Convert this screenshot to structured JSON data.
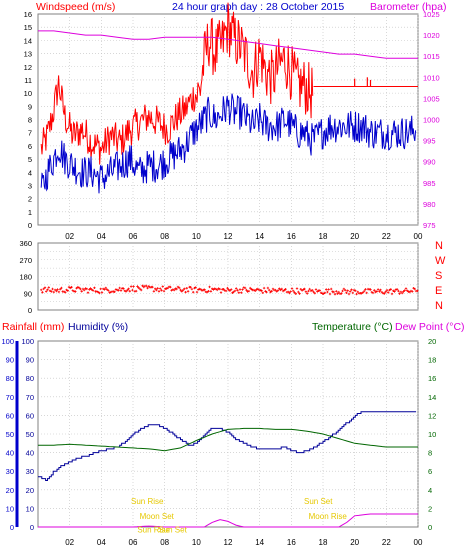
{
  "header": {
    "windspeed_label": "Windspeed (m/s)",
    "title": "24 hour graph day : 28 October 2015",
    "barometer_label": "Barometer (hpa)"
  },
  "mid": {
    "direction_labels": [
      "N",
      "W",
      "S",
      "E",
      "N"
    ]
  },
  "bottom": {
    "rainfall_label": "Rainfall (mm)",
    "humidity_label": "Humidity (%)",
    "temperature_label": "Temperature (°C)",
    "dewpoint_label": "Dew Point (°C)",
    "annotations": [
      {
        "text": "Sun Rise",
        "hour": 6.9,
        "y": 2.5
      },
      {
        "text": "Sun Set",
        "hour": 17.7,
        "y": 2.5
      },
      {
        "text": "Moon Set",
        "hour": 7.5,
        "y": 0.85
      },
      {
        "text": "Moon Rise",
        "hour": 18.3,
        "y": 0.85
      },
      {
        "text": "Sun Rise",
        "hour": 7.3,
        "y": -0.6
      },
      {
        "text": "Sun Set",
        "hour": 8.5,
        "y": -0.6
      }
    ]
  },
  "colors": {
    "wind": "#ff0000",
    "gust": "#ff0000",
    "avgwind": "#0000cc",
    "baro": "#dd00dd",
    "dir": "#ff0000",
    "humidity": "#000099",
    "temperature": "#006600",
    "dewpoint": "#dd00dd",
    "annotation": "#e6c800",
    "grid": "#c0c0c0"
  },
  "chart_data": [
    {
      "type": "line",
      "title": "24 hour graph day : 28 October 2015",
      "x_ticks": [
        "02",
        "04",
        "06",
        "08",
        "10",
        "12",
        "14",
        "16",
        "18",
        "20",
        "22",
        "00"
      ],
      "xlim_hours": [
        0,
        24
      ],
      "y_left": {
        "label": "Windspeed (m/s)",
        "ylim": [
          0,
          16
        ],
        "ticks": [
          0,
          1,
          2,
          3,
          4,
          5,
          6,
          7,
          8,
          9,
          10,
          11,
          12,
          13,
          14,
          15,
          16
        ]
      },
      "y_right": {
        "label": "Barometer (hpa)",
        "ylim": [
          975,
          1025
        ],
        "ticks": [
          975,
          980,
          985,
          990,
          995,
          1000,
          1005,
          1010,
          1015,
          1020,
          1025
        ]
      },
      "series": [
        {
          "name": "Windspeed (m/s)",
          "axis": "left",
          "style": "gust-max",
          "x": [
            0.2,
            0.6,
            1.0,
            1.3,
            1.7,
            2.2,
            2.8,
            3.4,
            4.0,
            4.6,
            5.2,
            5.8,
            6.4,
            7.0,
            7.6,
            8.2,
            8.8,
            9.3,
            9.8,
            10.2,
            10.5,
            10.8,
            11.2,
            11.6,
            12.0,
            12.4,
            12.8,
            13.2,
            13.6,
            14.0,
            14.4,
            14.8,
            15.2,
            15.6,
            16.0,
            16.4,
            16.8,
            17.2,
            17.5,
            17.9,
            18.5,
            19.2,
            20.0,
            20.5,
            21.0,
            21.5,
            22.0,
            22.5,
            23.0,
            23.5,
            24.0
          ],
          "y": [
            6,
            7,
            9,
            11,
            8.5,
            7,
            7.5,
            6.5,
            6,
            7,
            6.5,
            7.5,
            8,
            8.5,
            8,
            7.5,
            8.5,
            9,
            10,
            10.5,
            13,
            14.5,
            13.5,
            14,
            15.5,
            14.5,
            14,
            13,
            12,
            13.5,
            12,
            11.5,
            12.5,
            13,
            12,
            11,
            11,
            10.5,
            10.5,
            10.5,
            10.5,
            10.5,
            10.5,
            10.5,
            10.5,
            10.5,
            10.5,
            10.5,
            10.5,
            10.5,
            10.5
          ]
        },
        {
          "name": "Average wind",
          "axis": "left",
          "style": "avg",
          "x": [
            0.2,
            0.6,
            1.0,
            1.3,
            1.7,
            2.2,
            2.8,
            3.4,
            4.0,
            4.6,
            5.2,
            5.8,
            6.4,
            7.0,
            7.6,
            8.2,
            8.8,
            9.3,
            9.8,
            10.2,
            10.5,
            10.8,
            11.2,
            11.6,
            12.0,
            12.4,
            12.8,
            13.2,
            13.6,
            14.0,
            14.4,
            14.8,
            15.2,
            15.6,
            16.0,
            16.4,
            16.8,
            17.2,
            17.5,
            17.9,
            18.5,
            19.2,
            20.0,
            20.5,
            21.0,
            21.5,
            22.0,
            22.5,
            23.0,
            23.5,
            24.0
          ],
          "y": [
            2.5,
            4,
            5,
            6,
            5,
            4.5,
            4,
            4,
            3.5,
            4,
            4.5,
            5,
            4,
            4.5,
            4.5,
            5,
            5.5,
            6,
            7,
            7.5,
            8,
            8.5,
            8,
            8.5,
            9,
            8.5,
            8.5,
            8,
            7.5,
            8,
            7.5,
            7.5,
            7.5,
            8,
            7.5,
            7,
            7,
            6.5,
            6.5,
            7,
            7.5,
            7.5,
            7.5,
            7.5,
            7,
            7,
            7,
            7,
            7,
            7,
            7.5
          ]
        },
        {
          "name": "Barometer (hpa)",
          "axis": "right",
          "style": "baro",
          "x": [
            0,
            1,
            2,
            3,
            4,
            5,
            6,
            7,
            8,
            9,
            10,
            11,
            12,
            13,
            14,
            15,
            16,
            17,
            18,
            19,
            20,
            21,
            22,
            23,
            24
          ],
          "y": [
            1021,
            1021,
            1020.5,
            1020,
            1020,
            1019.5,
            1019,
            1019,
            1019.5,
            1019.5,
            1019.5,
            1019.5,
            1019,
            1018.5,
            1018,
            1017.5,
            1017,
            1016.5,
            1016,
            1015.5,
            1015.5,
            1015,
            1014.5,
            1014.5,
            1014.5
          ]
        }
      ]
    },
    {
      "type": "scatter",
      "title": "",
      "x_ticks": [
        "02",
        "04",
        "06",
        "08",
        "10",
        "12",
        "14",
        "16",
        "18",
        "20",
        "22",
        "00"
      ],
      "y_left": {
        "ylim": [
          0,
          360
        ],
        "ticks": [
          0,
          45,
          90,
          135,
          180,
          225,
          270,
          315,
          360
        ]
      },
      "y_right": {
        "labels": [
          "N",
          "W",
          "S",
          "E",
          "N"
        ]
      },
      "series": [
        {
          "name": "Wind direction",
          "x": [
            0,
            1,
            2,
            3,
            4,
            5,
            6,
            7,
            8,
            9,
            10,
            11,
            12,
            13,
            14,
            15,
            16,
            17,
            18,
            19,
            20,
            21,
            22,
            23,
            24
          ],
          "y": [
            110,
            105,
            110,
            108,
            105,
            110,
            115,
            115,
            112,
            110,
            108,
            110,
            105,
            108,
            105,
            105,
            103,
            100,
            100,
            100,
            98,
            98,
            100,
            100,
            105
          ]
        }
      ]
    },
    {
      "type": "line",
      "title": "",
      "x_ticks": [
        "02",
        "04",
        "06",
        "08",
        "10",
        "12",
        "14",
        "16",
        "18",
        "20",
        "22",
        "00"
      ],
      "y_left": {
        "label": "Rainfall (mm) / Humidity (%)",
        "ylim": [
          0,
          100
        ],
        "ticks": [
          0,
          10,
          20,
          30,
          40,
          50,
          60,
          70,
          80,
          90,
          100
        ]
      },
      "y_right": {
        "label": "Temperature (°C) / Dew Point (°C)",
        "ylim": [
          0,
          20
        ],
        "ticks": [
          0,
          2,
          4,
          6,
          8,
          10,
          12,
          14,
          16,
          18,
          20
        ]
      },
      "series": [
        {
          "name": "Humidity (%)",
          "axis": "left",
          "x": [
            0,
            0.5,
            1,
            1.5,
            2,
            2.5,
            3,
            3.5,
            4,
            4.5,
            5,
            5.5,
            6,
            6.5,
            7,
            7.5,
            8,
            8.5,
            9,
            9.5,
            10,
            10.5,
            11,
            11.5,
            12,
            12.5,
            13,
            13.5,
            14,
            14.5,
            15,
            15.5,
            16,
            16.5,
            17,
            17.5,
            18,
            18.5,
            19,
            19.5,
            20,
            20.5,
            21,
            21.5,
            22,
            22.5,
            23,
            23.5,
            24
          ],
          "y": [
            27,
            25,
            30,
            33,
            35,
            37,
            38,
            40,
            41,
            42,
            43,
            46,
            50,
            53,
            55,
            55,
            53,
            50,
            47,
            44,
            45,
            50,
            53,
            53,
            51,
            47,
            45,
            43,
            42,
            42,
            42,
            43,
            41,
            40,
            41,
            43,
            46,
            49,
            52,
            56,
            60,
            62,
            62,
            62,
            62,
            62,
            62,
            62,
            62
          ]
        },
        {
          "name": "Temperature (°C)",
          "axis": "right",
          "x": [
            0,
            1,
            2,
            3,
            4,
            5,
            6,
            7,
            8,
            9,
            10,
            11,
            12,
            13,
            14,
            15,
            16,
            17,
            18,
            19,
            20,
            21,
            22,
            23,
            24
          ],
          "y": [
            8.8,
            8.8,
            8.9,
            8.8,
            8.7,
            8.6,
            8.5,
            8.4,
            8.2,
            8.5,
            9.3,
            10.0,
            10.5,
            10.6,
            10.6,
            10.5,
            10.5,
            10.3,
            10.0,
            9.5,
            9.0,
            8.8,
            8.6,
            8.6,
            8.6
          ]
        },
        {
          "name": "Dew Point (°C)",
          "axis": "right",
          "x": [
            0,
            1,
            2,
            3,
            4,
            5,
            6,
            7,
            8,
            9,
            10,
            10.5,
            11,
            11.5,
            12,
            12.5,
            13,
            14,
            15,
            16,
            17,
            18,
            19,
            19.5,
            20,
            21,
            22,
            23,
            24
          ],
          "y": [
            0,
            0,
            0,
            0,
            0,
            0,
            0,
            0.1,
            0,
            0,
            0,
            0,
            0.5,
            0.8,
            0.6,
            0.2,
            0,
            0,
            0,
            0,
            0,
            0,
            0,
            0.5,
            1.2,
            1.4,
            1.4,
            1.4,
            1.4
          ]
        }
      ]
    }
  ]
}
